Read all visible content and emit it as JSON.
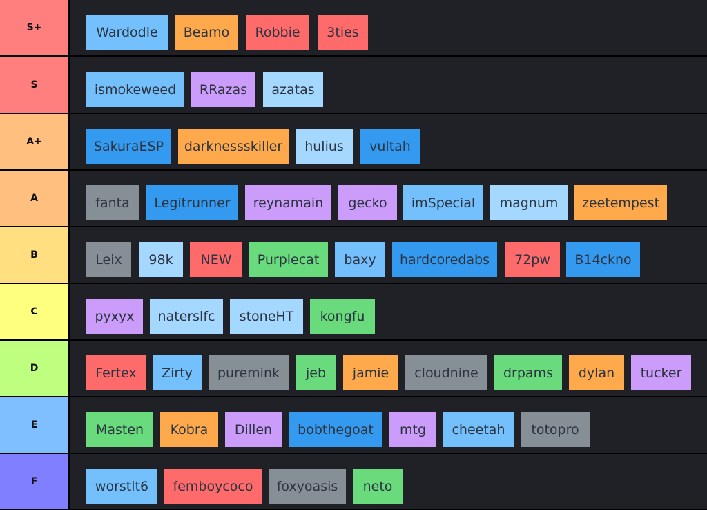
{
  "colors": {
    "blue": "#74c0fc",
    "orange": "#ffa94d",
    "red": "#ff6b6b",
    "purple": "#cc9cfa",
    "lightblue": "#a5d8ff",
    "darkblue": "#339af0",
    "gray": "#868e96",
    "green": "#69db7c",
    "tierbg": "#1f2127"
  },
  "tiers": [
    {
      "label": "S+",
      "color": "#ff7f7f",
      "items": [
        {
          "name": "Wardodle",
          "color": "blue"
        },
        {
          "name": "Beamo",
          "color": "orange"
        },
        {
          "name": "Robbie",
          "color": "red"
        },
        {
          "name": "3ties",
          "color": "red"
        }
      ]
    },
    {
      "label": "S",
      "color": "#ff7f7f",
      "items": [
        {
          "name": "ismokeweed",
          "color": "blue"
        },
        {
          "name": "RRazas",
          "color": "purple"
        },
        {
          "name": "azatas",
          "color": "lightblue"
        }
      ]
    },
    {
      "label": "A+",
      "color": "#ffbf7f",
      "items": [
        {
          "name": "SakuraESP",
          "color": "darkblue"
        },
        {
          "name": "darknessskiller",
          "color": "orange"
        },
        {
          "name": "hulius",
          "color": "lightblue"
        },
        {
          "name": "vultah",
          "color": "darkblue"
        }
      ]
    },
    {
      "label": "A",
      "color": "#ffbf7f",
      "items": [
        {
          "name": "fanta",
          "color": "gray"
        },
        {
          "name": "Legitrunner",
          "color": "darkblue"
        },
        {
          "name": "reynamain",
          "color": "purple"
        },
        {
          "name": "gecko",
          "color": "purple"
        },
        {
          "name": "imSpecial",
          "color": "blue"
        },
        {
          "name": "magnum",
          "color": "lightblue"
        },
        {
          "name": "zeetempest",
          "color": "orange"
        }
      ]
    },
    {
      "label": "B",
      "color": "#ffdf7f",
      "items": [
        {
          "name": "Leix",
          "color": "gray"
        },
        {
          "name": "98k",
          "color": "lightblue"
        },
        {
          "name": "NEW",
          "color": "red"
        },
        {
          "name": "Purplecat",
          "color": "green"
        },
        {
          "name": "baxy",
          "color": "blue"
        },
        {
          "name": "hardcoredabs",
          "color": "darkblue"
        },
        {
          "name": "72pw",
          "color": "red"
        },
        {
          "name": "B14ckno",
          "color": "darkblue"
        }
      ]
    },
    {
      "label": "C",
      "color": "#ffff7f",
      "items": [
        {
          "name": "pyxyx",
          "color": "purple"
        },
        {
          "name": "naterslfc",
          "color": "lightblue"
        },
        {
          "name": "stoneHT",
          "color": "lightblue"
        },
        {
          "name": "kongfu",
          "color": "green"
        }
      ]
    },
    {
      "label": "D",
      "color": "#bfff7f",
      "items": [
        {
          "name": "Fertex",
          "color": "red"
        },
        {
          "name": "Zirty",
          "color": "blue"
        },
        {
          "name": "puremink",
          "color": "gray"
        },
        {
          "name": "jeb",
          "color": "green"
        },
        {
          "name": "jamie",
          "color": "orange"
        },
        {
          "name": "cloudnine",
          "color": "gray"
        },
        {
          "name": "drpams",
          "color": "green"
        },
        {
          "name": "dylan",
          "color": "orange"
        },
        {
          "name": "tucker",
          "color": "purple"
        }
      ]
    },
    {
      "label": "E",
      "color": "#7fbfff",
      "items": [
        {
          "name": "Masten",
          "color": "green"
        },
        {
          "name": "Kobra",
          "color": "orange"
        },
        {
          "name": "Dillen",
          "color": "purple"
        },
        {
          "name": "bobthegoat",
          "color": "darkblue"
        },
        {
          "name": "mtg",
          "color": "purple"
        },
        {
          "name": "cheetah",
          "color": "blue"
        },
        {
          "name": "totopro",
          "color": "gray"
        }
      ]
    },
    {
      "label": "F",
      "color": "#7f7fff",
      "items": [
        {
          "name": "worstlt6",
          "color": "blue"
        },
        {
          "name": "femboycoco",
          "color": "red"
        },
        {
          "name": "foxyoasis",
          "color": "gray"
        },
        {
          "name": "neto",
          "color": "green"
        }
      ]
    }
  ]
}
